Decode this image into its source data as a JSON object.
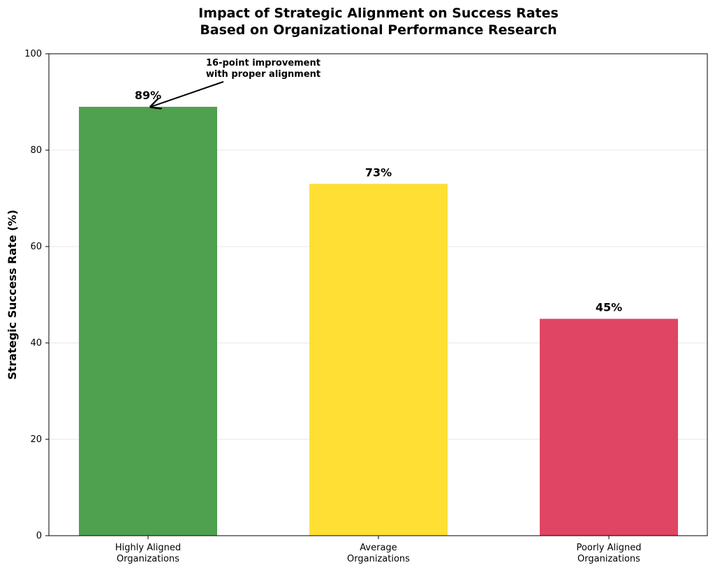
{
  "chart_data": {
    "type": "bar",
    "title": "Impact of Strategic Alignment on Success Rates\nBased on Organizational Performance Research",
    "y_label": "Strategic Success Rate (%)",
    "categories": [
      "Highly Aligned\nOrganizations",
      "Average\nOrganizations",
      "Poorly Aligned\nOrganizations"
    ],
    "values": [
      89,
      73,
      45
    ],
    "value_labels": [
      "89%",
      "73%",
      "45%"
    ],
    "colors": [
      "#50a14f",
      "#ffdf33",
      "#e04563"
    ],
    "ylim": [
      0,
      100
    ],
    "yticks": [
      0,
      20,
      40,
      60,
      80,
      100
    ],
    "grid": true,
    "annotation": "16-point improvement\nwith proper alignment"
  }
}
